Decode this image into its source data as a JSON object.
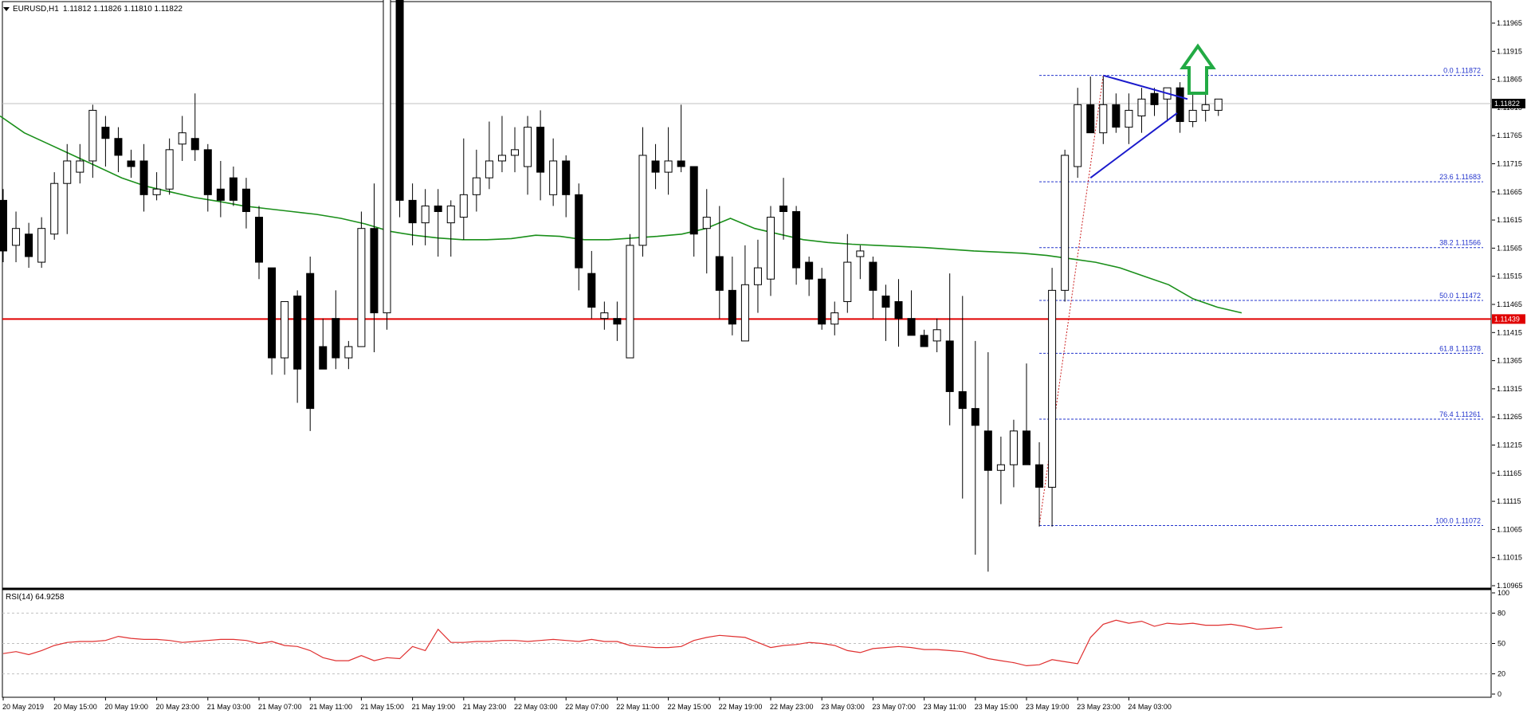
{
  "header": {
    "symbol": "EURUSD,H1",
    "ohlc": "1.11812 1.11826 1.11810 1.11822"
  },
  "colors": {
    "bull_fill": "#ffffff",
    "bear_fill": "#000000",
    "ma": "#1a8f1a",
    "support": "#e00000",
    "fib": "#2233cc",
    "triangle": "#1a1acc",
    "arrow": "#22aa44",
    "rsi": "#e03030",
    "trend_dash": "#cc2222"
  },
  "chart_data": [
    {
      "type": "candlestick",
      "title": "EURUSD,H1",
      "ylim": [
        1.10965,
        1.12015
      ],
      "price_ticks": [
        "1.11965",
        "1.11915",
        "1.11865",
        "1.11815",
        "1.11765",
        "1.11715",
        "1.11665",
        "1.11615",
        "1.11565",
        "1.11515",
        "1.11465",
        "1.11415",
        "1.11365",
        "1.11315",
        "1.11265",
        "1.11215",
        "1.11165",
        "1.11115",
        "1.11065",
        "1.11015",
        "1.10965"
      ],
      "time_labels": [
        "20 May 2019",
        "20 May 15:00",
        "20 May 19:00",
        "20 May 23:00",
        "21 May 03:00",
        "21 May 07:00",
        "21 May 11:00",
        "21 May 15:00",
        "21 May 19:00",
        "21 May 23:00",
        "22 May 03:00",
        "22 May 07:00",
        "22 May 11:00",
        "22 May 15:00",
        "22 May 19:00",
        "22 May 23:00",
        "23 May 03:00",
        "23 May 07:00",
        "23 May 11:00",
        "23 May 15:00",
        "23 May 19:00",
        "23 May 23:00",
        "24 May 03:00"
      ],
      "candles": [
        [
          1.1165,
          1.1167,
          1.1154,
          1.1156
        ],
        [
          1.1157,
          1.1163,
          1.1154,
          1.116
        ],
        [
          1.1159,
          1.1161,
          1.1153,
          1.1155
        ],
        [
          1.1154,
          1.1162,
          1.1153,
          1.116
        ],
        [
          1.1159,
          1.117,
          1.1158,
          1.1168
        ],
        [
          1.1168,
          1.1175,
          1.1159,
          1.1172
        ],
        [
          1.117,
          1.1175,
          1.1168,
          1.1172
        ],
        [
          1.1172,
          1.1182,
          1.1169,
          1.1181
        ],
        [
          1.1178,
          1.118,
          1.1171,
          1.1176
        ],
        [
          1.1176,
          1.1178,
          1.117,
          1.1173
        ],
        [
          1.1172,
          1.1174,
          1.1169,
          1.1171
        ],
        [
          1.1172,
          1.1175,
          1.1163,
          1.1166
        ],
        [
          1.1166,
          1.117,
          1.1165,
          1.1167
        ],
        [
          1.1167,
          1.1176,
          1.1166,
          1.1174
        ],
        [
          1.1175,
          1.118,
          1.1172,
          1.1177
        ],
        [
          1.1176,
          1.1184,
          1.1172,
          1.1174
        ],
        [
          1.1174,
          1.1175,
          1.1163,
          1.1166
        ],
        [
          1.1167,
          1.1172,
          1.1162,
          1.1165
        ],
        [
          1.1169,
          1.1171,
          1.1164,
          1.1165
        ],
        [
          1.1167,
          1.1169,
          1.116,
          1.1163
        ],
        [
          1.1162,
          1.1164,
          1.1151,
          1.1154
        ],
        [
          1.1153,
          1.1153,
          1.1134,
          1.1137
        ],
        [
          1.1137,
          1.1147,
          1.1134,
          1.1147
        ],
        [
          1.1148,
          1.1149,
          1.1129,
          1.1135
        ],
        [
          1.1152,
          1.1155,
          1.1124,
          1.1128
        ],
        [
          1.1139,
          1.1144,
          1.1135,
          1.1135
        ],
        [
          1.1144,
          1.1149,
          1.1135,
          1.1137
        ],
        [
          1.1137,
          1.114,
          1.1135,
          1.1139
        ],
        [
          1.1139,
          1.1163,
          1.1139,
          1.116
        ],
        [
          1.116,
          1.1168,
          1.1138,
          1.1145
        ],
        [
          1.1145,
          1.121,
          1.1142,
          1.1205
        ],
        [
          1.1205,
          1.121,
          1.1162,
          1.1165
        ],
        [
          1.1165,
          1.1168,
          1.1157,
          1.1161
        ],
        [
          1.1161,
          1.1167,
          1.1157,
          1.1164
        ],
        [
          1.1164,
          1.1167,
          1.1155,
          1.1163
        ],
        [
          1.1161,
          1.1165,
          1.1155,
          1.1164
        ],
        [
          1.1162,
          1.1176,
          1.1158,
          1.1166
        ],
        [
          1.1166,
          1.1174,
          1.1163,
          1.1169
        ],
        [
          1.1169,
          1.1179,
          1.1167,
          1.1172
        ],
        [
          1.1172,
          1.118,
          1.117,
          1.1173
        ],
        [
          1.1173,
          1.1178,
          1.117,
          1.1174
        ],
        [
          1.1171,
          1.118,
          1.1166,
          1.1178
        ],
        [
          1.1178,
          1.1181,
          1.1165,
          1.117
        ],
        [
          1.1166,
          1.1176,
          1.1164,
          1.1172
        ],
        [
          1.1172,
          1.1173,
          1.1162,
          1.1166
        ],
        [
          1.1166,
          1.1168,
          1.1149,
          1.1153
        ],
        [
          1.1152,
          1.1156,
          1.1144,
          1.1146
        ],
        [
          1.1144,
          1.1147,
          1.1142,
          1.1145
        ],
        [
          1.1144,
          1.1147,
          1.114,
          1.1143
        ],
        [
          1.1137,
          1.1159,
          1.1137,
          1.1157
        ],
        [
          1.1157,
          1.1178,
          1.1155,
          1.1173
        ],
        [
          1.1172,
          1.1175,
          1.1167,
          1.117
        ],
        [
          1.117,
          1.1178,
          1.1166,
          1.1172
        ],
        [
          1.1172,
          1.1182,
          1.117,
          1.1171
        ],
        [
          1.1171,
          1.1171,
          1.1155,
          1.1159
        ],
        [
          1.116,
          1.1167,
          1.1152,
          1.1162
        ],
        [
          1.1155,
          1.1164,
          1.1144,
          1.1149
        ],
        [
          1.1149,
          1.1155,
          1.1141,
          1.1143
        ],
        [
          1.114,
          1.1157,
          1.114,
          1.115
        ],
        [
          1.115,
          1.1158,
          1.1145,
          1.1153
        ],
        [
          1.1151,
          1.1164,
          1.1148,
          1.1162
        ],
        [
          1.1164,
          1.1169,
          1.1158,
          1.1163
        ],
        [
          1.1163,
          1.1164,
          1.115,
          1.1153
        ],
        [
          1.1154,
          1.1155,
          1.1148,
          1.1151
        ],
        [
          1.1151,
          1.1153,
          1.1142,
          1.1143
        ],
        [
          1.1143,
          1.1147,
          1.1141,
          1.1145
        ],
        [
          1.1147,
          1.1159,
          1.1145,
          1.1154
        ],
        [
          1.1155,
          1.1157,
          1.1151,
          1.1156
        ],
        [
          1.1154,
          1.1155,
          1.1144,
          1.1149
        ],
        [
          1.1148,
          1.115,
          1.114,
          1.1146
        ],
        [
          1.1147,
          1.1151,
          1.1139,
          1.1144
        ],
        [
          1.1144,
          1.1149,
          1.1141,
          1.1141
        ],
        [
          1.1141,
          1.1142,
          1.1139,
          1.1139
        ],
        [
          1.114,
          1.1144,
          1.1138,
          1.1142
        ],
        [
          1.114,
          1.1152,
          1.1125,
          1.1131
        ],
        [
          1.1131,
          1.1148,
          1.1112,
          1.1128
        ],
        [
          1.1128,
          1.114,
          1.1102,
          1.1125
        ],
        [
          1.1124,
          1.1138,
          1.1099,
          1.1117
        ],
        [
          1.1117,
          1.1123,
          1.1111,
          1.1118
        ],
        [
          1.1118,
          1.1126,
          1.1114,
          1.1124
        ],
        [
          1.1124,
          1.1136,
          1.1118,
          1.1118
        ],
        [
          1.1118,
          1.1122,
          1.1107,
          1.1114
        ],
        [
          1.1114,
          1.1153,
          1.1107,
          1.1149
        ],
        [
          1.1149,
          1.1174,
          1.1147,
          1.1173
        ],
        [
          1.1171,
          1.1185,
          1.1169,
          1.1182
        ],
        [
          1.1182,
          1.1187,
          1.1177,
          1.1177
        ],
        [
          1.1177,
          1.1187,
          1.1175,
          1.1182
        ],
        [
          1.1182,
          1.1184,
          1.1177,
          1.1178
        ],
        [
          1.1178,
          1.1184,
          1.1175,
          1.1181
        ],
        [
          1.118,
          1.1185,
          1.1177,
          1.1183
        ],
        [
          1.1184,
          1.1185,
          1.118,
          1.1182
        ],
        [
          1.1183,
          1.1185,
          1.1179,
          1.1185
        ],
        [
          1.1185,
          1.1186,
          1.1177,
          1.1179
        ],
        [
          1.1179,
          1.1184,
          1.1178,
          1.1181
        ],
        [
          1.1181,
          1.1184,
          1.1179,
          1.1182
        ],
        [
          1.1181,
          1.1183,
          1.118,
          1.1183
        ]
      ],
      "ma": [
        1.118,
        1.1177,
        1.1175,
        1.1173,
        1.1171,
        1.1169,
        1.11675,
        1.11665,
        1.11655,
        1.11648,
        1.1164,
        1.11635,
        1.1163,
        1.11625,
        1.11618,
        1.11608,
        1.11595,
        1.11588,
        1.11583,
        1.1158,
        1.1158,
        1.11582,
        1.11588,
        1.11586,
        1.1158,
        1.1158,
        1.11583,
        1.11586,
        1.1159,
        1.116,
        1.11618,
        1.116,
        1.1159,
        1.1158,
        1.11575,
        1.11572,
        1.1157,
        1.11568,
        1.11566,
        1.11563,
        1.1156,
        1.11558,
        1.11556,
        1.11552,
        1.11546,
        1.1154,
        1.1153,
        1.11515,
        1.115,
        1.11475,
        1.1146,
        1.1145
      ],
      "support": {
        "price": 1.11439,
        "label": "1.11439"
      },
      "current_price": {
        "price": 1.11822,
        "label": "1.11822"
      },
      "fib_levels": [
        {
          "label": "0.0 1.11872",
          "price": 1.11872
        },
        {
          "label": "23.6 1.11683",
          "price": 1.11683
        },
        {
          "label": "38.2 1.11566",
          "price": 1.11566
        },
        {
          "label": "50.0 1.11472",
          "price": 1.11472
        },
        {
          "label": "61.8 1.11378",
          "price": 1.11378
        },
        {
          "label": "76.4 1.11261",
          "price": 1.11261
        },
        {
          "label": "100.0 1.11072",
          "price": 1.11072
        }
      ],
      "fib_anchor": {
        "low": 1.11072,
        "high": 1.11872
      },
      "triangle": {
        "upper": [
          [
            1.11872,
            0
          ],
          [
            1.1183,
            1
          ]
        ],
        "lower": [
          [
            1.1169,
            0
          ],
          [
            1.11805,
            1
          ]
        ]
      },
      "annotations": [
        "breakout-arrow-up"
      ]
    },
    {
      "type": "line",
      "title": "RSI(14) 64.9258",
      "ylim": [
        0,
        100
      ],
      "ticks": [
        "100",
        "80",
        "50",
        "20",
        "0"
      ],
      "levels": [
        80,
        50,
        20
      ],
      "values": [
        40,
        42,
        39,
        43,
        48,
        51,
        52,
        52,
        53,
        57,
        55,
        54,
        54,
        53,
        51,
        52,
        53,
        54,
        54,
        53,
        50,
        52,
        48,
        47,
        43,
        36,
        33,
        33,
        38,
        33,
        36,
        35,
        47,
        43,
        64,
        51,
        51,
        52,
        52,
        53,
        53,
        52,
        53,
        54,
        53,
        52,
        54,
        52,
        52,
        48,
        47,
        46,
        46,
        47,
        53,
        56,
        58,
        57,
        56,
        51,
        46,
        48,
        49,
        51,
        50,
        48,
        43,
        41,
        45,
        46,
        47,
        46,
        44,
        44,
        43,
        42,
        39,
        35,
        33,
        31,
        28,
        29,
        34,
        32,
        30,
        56,
        69,
        73,
        70,
        72,
        67,
        70,
        69,
        70,
        68,
        68,
        69,
        67,
        64,
        65,
        66
      ]
    }
  ]
}
